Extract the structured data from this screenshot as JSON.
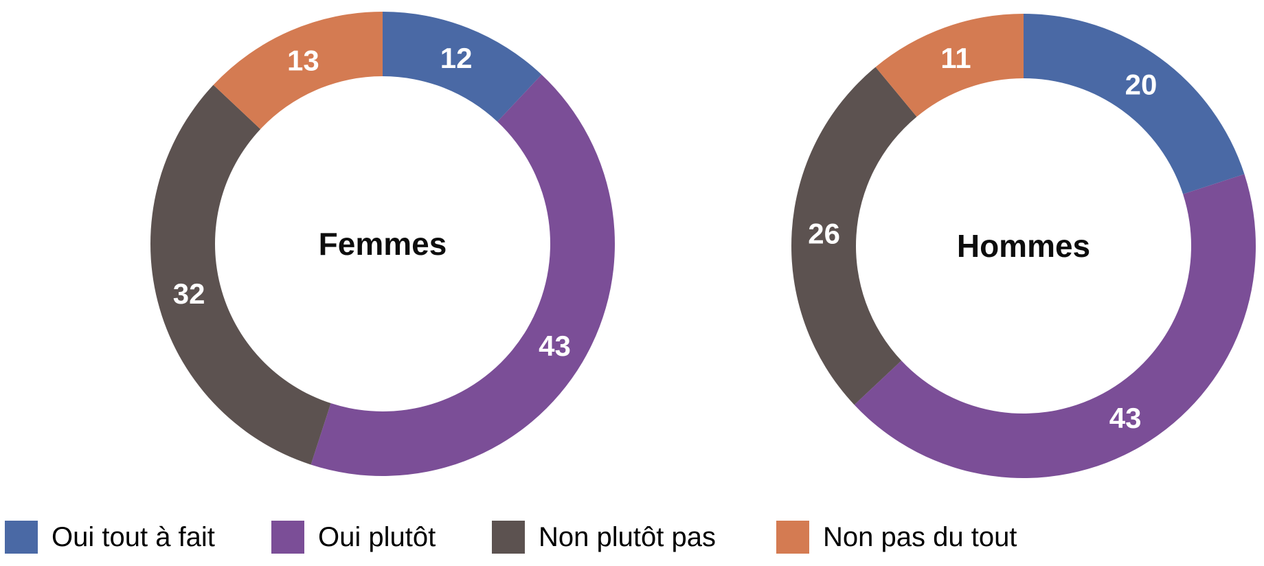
{
  "colors": {
    "blue": "#4a69a5",
    "purple": "#7b4e97",
    "dark_gray": "#5c5250",
    "orange": "#d47b52",
    "segment_value_text": "#ffffff",
    "center_text": "#0d0d0d",
    "background": "#ffffff"
  },
  "legend": [
    {
      "label": "Oui tout à fait",
      "color": "#4a69a5"
    },
    {
      "label": "Oui plutôt",
      "color": "#7b4e97"
    },
    {
      "label": "Non plutôt pas",
      "color": "#5c5250"
    },
    {
      "label": "Non pas du tout",
      "color": "#d47b52"
    }
  ],
  "chart_data": [
    {
      "type": "pie",
      "subtype": "donut",
      "center_label": "Femmes",
      "categories": [
        "Oui tout à fait",
        "Oui plutôt",
        "Non plutôt pas",
        "Non pas du tout"
      ],
      "values": [
        12,
        43,
        32,
        13
      ],
      "colors": [
        "#4a69a5",
        "#7b4e97",
        "#5c5250",
        "#d47b52"
      ],
      "value_labels": [
        "12",
        "43",
        "32",
        "13"
      ],
      "start_angle_deg": 0,
      "direction": "clockwise",
      "total": 100,
      "labels_position": "inside-ring",
      "legend_position": "bottom"
    },
    {
      "type": "pie",
      "subtype": "donut",
      "center_label": "Hommes",
      "categories": [
        "Oui tout à fait",
        "Oui plutôt",
        "Non plutôt pas",
        "Non pas du tout"
      ],
      "values": [
        20,
        43,
        26,
        11
      ],
      "colors": [
        "#4a69a5",
        "#7b4e97",
        "#5c5250",
        "#d47b52"
      ],
      "value_labels": [
        "20",
        "43",
        "26",
        "11"
      ],
      "start_angle_deg": 0,
      "direction": "clockwise",
      "total": 100,
      "labels_position": "inside-ring",
      "legend_position": "bottom"
    }
  ]
}
